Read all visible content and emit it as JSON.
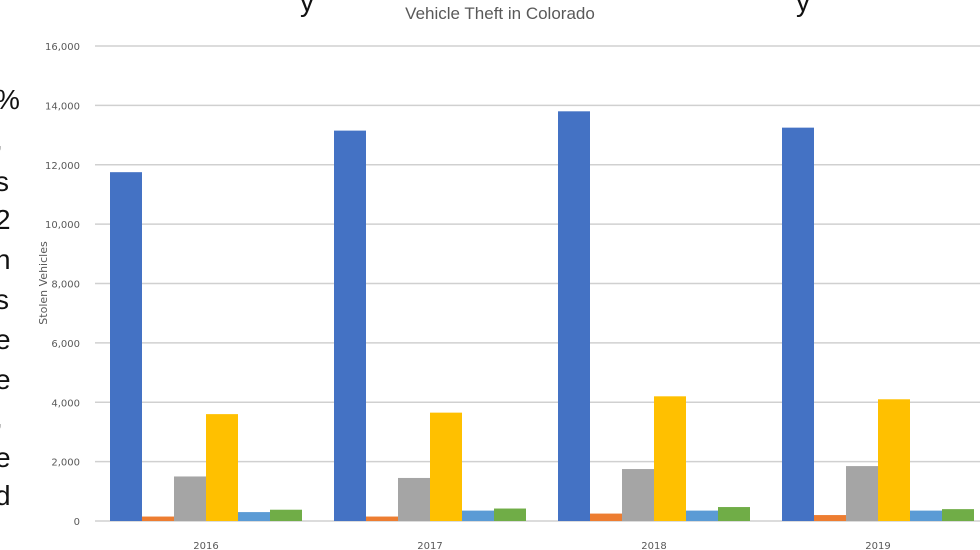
{
  "chart_data": {
    "type": "bar",
    "title": "Vehicle Theft in Colorado",
    "xlabel": "",
    "ylabel": "Stolen Vehicles",
    "ylim": [
      0,
      16000
    ],
    "yticks": [
      "0",
      "2,000",
      "4,000",
      "6,000",
      "8,000",
      "10,000",
      "12,000",
      "14,000",
      "16,000"
    ],
    "grid": true,
    "categories": [
      "2016",
      "2017",
      "2018",
      "2019"
    ],
    "series": [
      {
        "color": "#4472c4",
        "values": [
          11750,
          13150,
          13800,
          13250
        ]
      },
      {
        "color": "#ed7d31",
        "values": [
          150,
          150,
          250,
          200
        ]
      },
      {
        "color": "#a5a5a5",
        "values": [
          1500,
          1450,
          1750,
          1850
        ]
      },
      {
        "color": "#ffc000",
        "values": [
          3600,
          3650,
          4200,
          4100
        ]
      },
      {
        "color": "#5b9bd5",
        "values": [
          300,
          350,
          350,
          350
        ]
      },
      {
        "color": "#70ad47",
        "values": [
          380,
          420,
          470,
          400
        ]
      }
    ]
  },
  "side_text": {
    "letters": [
      "%",
      ",",
      "s",
      "2",
      "n",
      "s",
      "e",
      "e",
      ",",
      "e",
      "d"
    ],
    "top_fragments": [
      "y",
      "y"
    ]
  }
}
